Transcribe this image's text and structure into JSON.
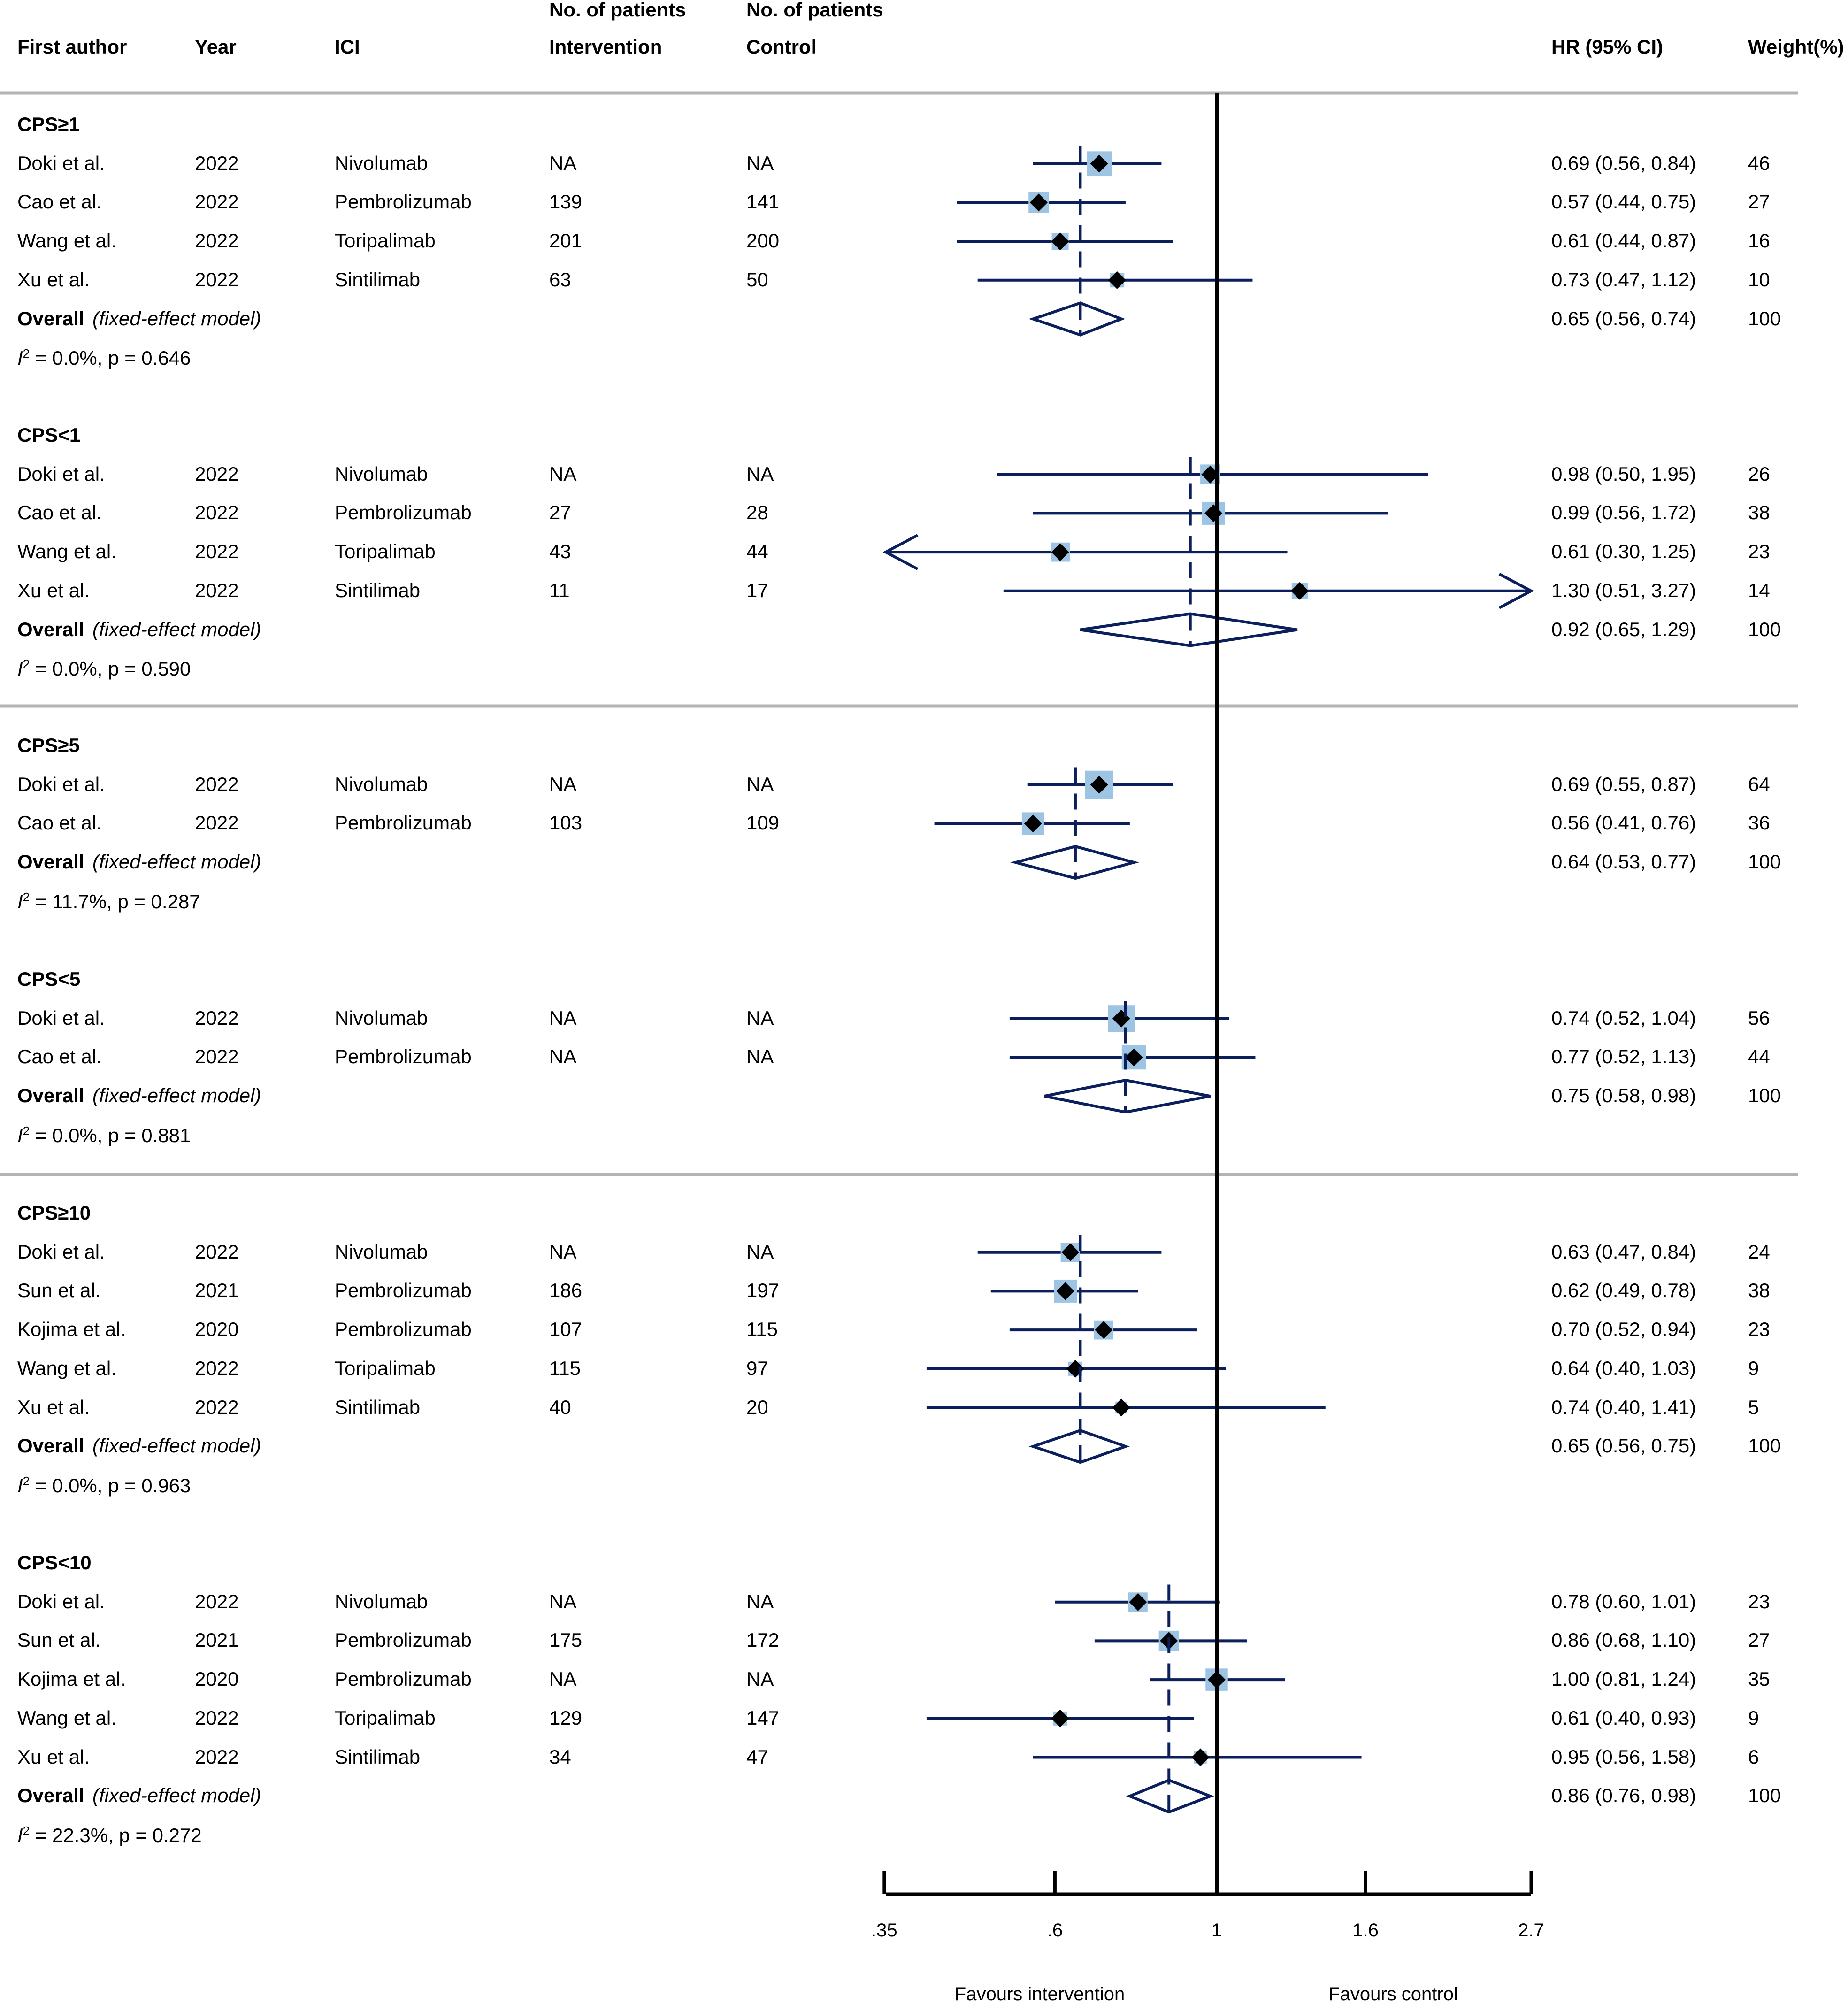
{
  "header": {
    "first_author": "First author",
    "year": "Year",
    "ici": "ICI",
    "n_patients_1": "No. of patients",
    "intervention": "Intervention",
    "n_patients_2": "No. of patients",
    "control": "Control",
    "hr": "HR (95% CI)",
    "weight": "Weight(%)"
  },
  "overall_label": "Overall",
  "overall_note": "(fixed-effect model)",
  "heterogeneity_prefix": "I",
  "heterogeneity_sup": "2",
  "axis": {
    "ticks": [
      {
        "label": ".35",
        "value": 0.35
      },
      {
        "label": ".6",
        "value": 0.6
      },
      {
        "label": "1",
        "value": 1.0
      },
      {
        "label": "1.6",
        "value": 1.6
      },
      {
        "label": "2.7",
        "value": 2.7
      }
    ],
    "favours_left": "Favours intervention",
    "favours_right": "Favours control"
  },
  "colors": {
    "line": "#0a1f5c",
    "box": "#9ec4e3",
    "separator": "#b3b3b3",
    "marker": "#000000"
  },
  "chart_data": {
    "type": "forest",
    "scale": "log",
    "xlim": [
      0.35,
      2.7
    ],
    "reference": 1.0,
    "subgroups": [
      {
        "label": "CPS≥1",
        "studies": [
          {
            "author": "Doki et al.",
            "year": "2022",
            "ici": "Nivolumab",
            "n_int": "NA",
            "n_ctrl": "NA",
            "hr": 0.69,
            "lo": 0.56,
            "hi": 0.84,
            "ci": "0.69 (0.56, 0.84)",
            "weight": "46"
          },
          {
            "author": "Cao et al.",
            "year": "2022",
            "ici": "Pembrolizumab",
            "n_int": "139",
            "n_ctrl": "141",
            "hr": 0.57,
            "lo": 0.44,
            "hi": 0.75,
            "ci": "0.57 (0.44, 0.75)",
            "weight": "27"
          },
          {
            "author": "Wang et al.",
            "year": "2022",
            "ici": "Toripalimab",
            "n_int": "201",
            "n_ctrl": "200",
            "hr": 0.61,
            "lo": 0.44,
            "hi": 0.87,
            "ci": "0.61 (0.44, 0.87)",
            "weight": "16"
          },
          {
            "author": "Xu et al.",
            "year": "2022",
            "ici": "Sintilimab",
            "n_int": "63",
            "n_ctrl": "50",
            "hr": 0.73,
            "lo": 0.47,
            "hi": 1.12,
            "ci": "0.73 (0.47, 1.12)",
            "weight": "10"
          }
        ],
        "overall": {
          "hr": 0.65,
          "lo": 0.56,
          "hi": 0.74,
          "ci": "0.65 (0.56, 0.74)",
          "weight": "100"
        },
        "heterogeneity": " = 0.0%, p = 0.646"
      },
      {
        "label": "CPS<1",
        "studies": [
          {
            "author": "Doki et al.",
            "year": "2022",
            "ici": "Nivolumab",
            "n_int": "NA",
            "n_ctrl": "NA",
            "hr": 0.98,
            "lo": 0.5,
            "hi": 1.95,
            "ci": "0.98 (0.50, 1.95)",
            "weight": "26"
          },
          {
            "author": "Cao et al.",
            "year": "2022",
            "ici": "Pembrolizumab",
            "n_int": "27",
            "n_ctrl": "28",
            "hr": 0.99,
            "lo": 0.56,
            "hi": 1.72,
            "ci": "0.99 (0.56, 1.72)",
            "weight": "38"
          },
          {
            "author": "Wang et al.",
            "year": "2022",
            "ici": "Toripalimab",
            "n_int": "43",
            "n_ctrl": "44",
            "hr": 0.61,
            "lo": 0.3,
            "hi": 1.25,
            "ci": "0.61 (0.30, 1.25)",
            "weight": "23"
          },
          {
            "author": "Xu et al.",
            "year": "2022",
            "ici": "Sintilimab",
            "n_int": "11",
            "n_ctrl": "17",
            "hr": 1.3,
            "lo": 0.51,
            "hi": 3.27,
            "ci": "1.30 (0.51, 3.27)",
            "weight": "14"
          }
        ],
        "overall": {
          "hr": 0.92,
          "lo": 0.65,
          "hi": 1.29,
          "ci": "0.92 (0.65, 1.29)",
          "weight": "100"
        },
        "heterogeneity": " = 0.0%, p = 0.590"
      },
      {
        "label": "CPS≥5",
        "studies": [
          {
            "author": "Doki et al.",
            "year": "2022",
            "ici": "Nivolumab",
            "n_int": "NA",
            "n_ctrl": "NA",
            "hr": 0.69,
            "lo": 0.55,
            "hi": 0.87,
            "ci": "0.69 (0.55, 0.87)",
            "weight": "64"
          },
          {
            "author": "Cao et al.",
            "year": "2022",
            "ici": "Pembrolizumab",
            "n_int": "103",
            "n_ctrl": "109",
            "hr": 0.56,
            "lo": 0.41,
            "hi": 0.76,
            "ci": "0.56 (0.41, 0.76)",
            "weight": "36"
          }
        ],
        "overall": {
          "hr": 0.64,
          "lo": 0.53,
          "hi": 0.77,
          "ci": "0.64 (0.53, 0.77)",
          "weight": "100"
        },
        "heterogeneity": " = 11.7%, p = 0.287"
      },
      {
        "label": "CPS<5",
        "studies": [
          {
            "author": "Doki et al.",
            "year": "2022",
            "ici": "Nivolumab",
            "n_int": "NA",
            "n_ctrl": "NA",
            "hr": 0.74,
            "lo": 0.52,
            "hi": 1.04,
            "ci": "0.74 (0.52, 1.04)",
            "weight": "56"
          },
          {
            "author": "Cao et al.",
            "year": "2022",
            "ici": "Pembrolizumab",
            "n_int": "NA",
            "n_ctrl": "NA",
            "hr": 0.77,
            "lo": 0.52,
            "hi": 1.13,
            "ci": "0.77 (0.52, 1.13)",
            "weight": "44"
          }
        ],
        "overall": {
          "hr": 0.75,
          "lo": 0.58,
          "hi": 0.98,
          "ci": "0.75 (0.58, 0.98)",
          "weight": "100"
        },
        "heterogeneity": " = 0.0%, p = 0.881"
      },
      {
        "label": "CPS≥10",
        "studies": [
          {
            "author": "Doki et al.",
            "year": "2022",
            "ici": "Nivolumab",
            "n_int": "NA",
            "n_ctrl": "NA",
            "hr": 0.63,
            "lo": 0.47,
            "hi": 0.84,
            "ci": "0.63 (0.47, 0.84)",
            "weight": "24"
          },
          {
            "author": "Sun et al.",
            "year": "2021",
            "ici": "Pembrolizumab",
            "n_int": "186",
            "n_ctrl": "197",
            "hr": 0.62,
            "lo": 0.49,
            "hi": 0.78,
            "ci": "0.62 (0.49, 0.78)",
            "weight": "38"
          },
          {
            "author": "Kojima et al.",
            "year": "2020",
            "ici": "Pembrolizumab",
            "n_int": "107",
            "n_ctrl": "115",
            "hr": 0.7,
            "lo": 0.52,
            "hi": 0.94,
            "ci": "0.70 (0.52, 0.94)",
            "weight": "23"
          },
          {
            "author": "Wang et al.",
            "year": "2022",
            "ici": "Toripalimab",
            "n_int": "115",
            "n_ctrl": "97",
            "hr": 0.64,
            "lo": 0.4,
            "hi": 1.03,
            "ci": "0.64 (0.40, 1.03)",
            "weight": "9"
          },
          {
            "author": "Xu et al.",
            "year": "2022",
            "ici": "Sintilimab",
            "n_int": "40",
            "n_ctrl": "20",
            "hr": 0.74,
            "lo": 0.4,
            "hi": 1.41,
            "ci": "0.74 (0.40, 1.41)",
            "weight": "5"
          }
        ],
        "overall": {
          "hr": 0.65,
          "lo": 0.56,
          "hi": 0.75,
          "ci": "0.65 (0.56, 0.75)",
          "weight": "100"
        },
        "heterogeneity": " = 0.0%, p = 0.963"
      },
      {
        "label": "CPS<10",
        "studies": [
          {
            "author": "Doki et al.",
            "year": "2022",
            "ici": "Nivolumab",
            "n_int": "NA",
            "n_ctrl": "NA",
            "hr": 0.78,
            "lo": 0.6,
            "hi": 1.01,
            "ci": "0.78 (0.60, 1.01)",
            "weight": "23"
          },
          {
            "author": "Sun et al.",
            "year": "2021",
            "ici": "Pembrolizumab",
            "n_int": "175",
            "n_ctrl": "172",
            "hr": 0.86,
            "lo": 0.68,
            "hi": 1.1,
            "ci": "0.86 (0.68, 1.10)",
            "weight": "27"
          },
          {
            "author": "Kojima et al.",
            "year": "2020",
            "ici": "Pembrolizumab",
            "n_int": "NA",
            "n_ctrl": "NA",
            "hr": 1.0,
            "lo": 0.81,
            "hi": 1.24,
            "ci": "1.00 (0.81, 1.24)",
            "weight": "35"
          },
          {
            "author": "Wang et al.",
            "year": "2022",
            "ici": "Toripalimab",
            "n_int": "129",
            "n_ctrl": "147",
            "hr": 0.61,
            "lo": 0.4,
            "hi": 0.93,
            "ci": "0.61 (0.40, 0.93)",
            "weight": "9"
          },
          {
            "author": "Xu et al.",
            "year": "2022",
            "ici": "Sintilimab",
            "n_int": "34",
            "n_ctrl": "47",
            "hr": 0.95,
            "lo": 0.56,
            "hi": 1.58,
            "ci": "0.95 (0.56, 1.58)",
            "weight": "6"
          }
        ],
        "overall": {
          "hr": 0.86,
          "lo": 0.76,
          "hi": 0.98,
          "ci": "0.86 (0.76, 0.98)",
          "weight": "100"
        },
        "heterogeneity": " = 22.3%, p = 0.272"
      }
    ]
  }
}
